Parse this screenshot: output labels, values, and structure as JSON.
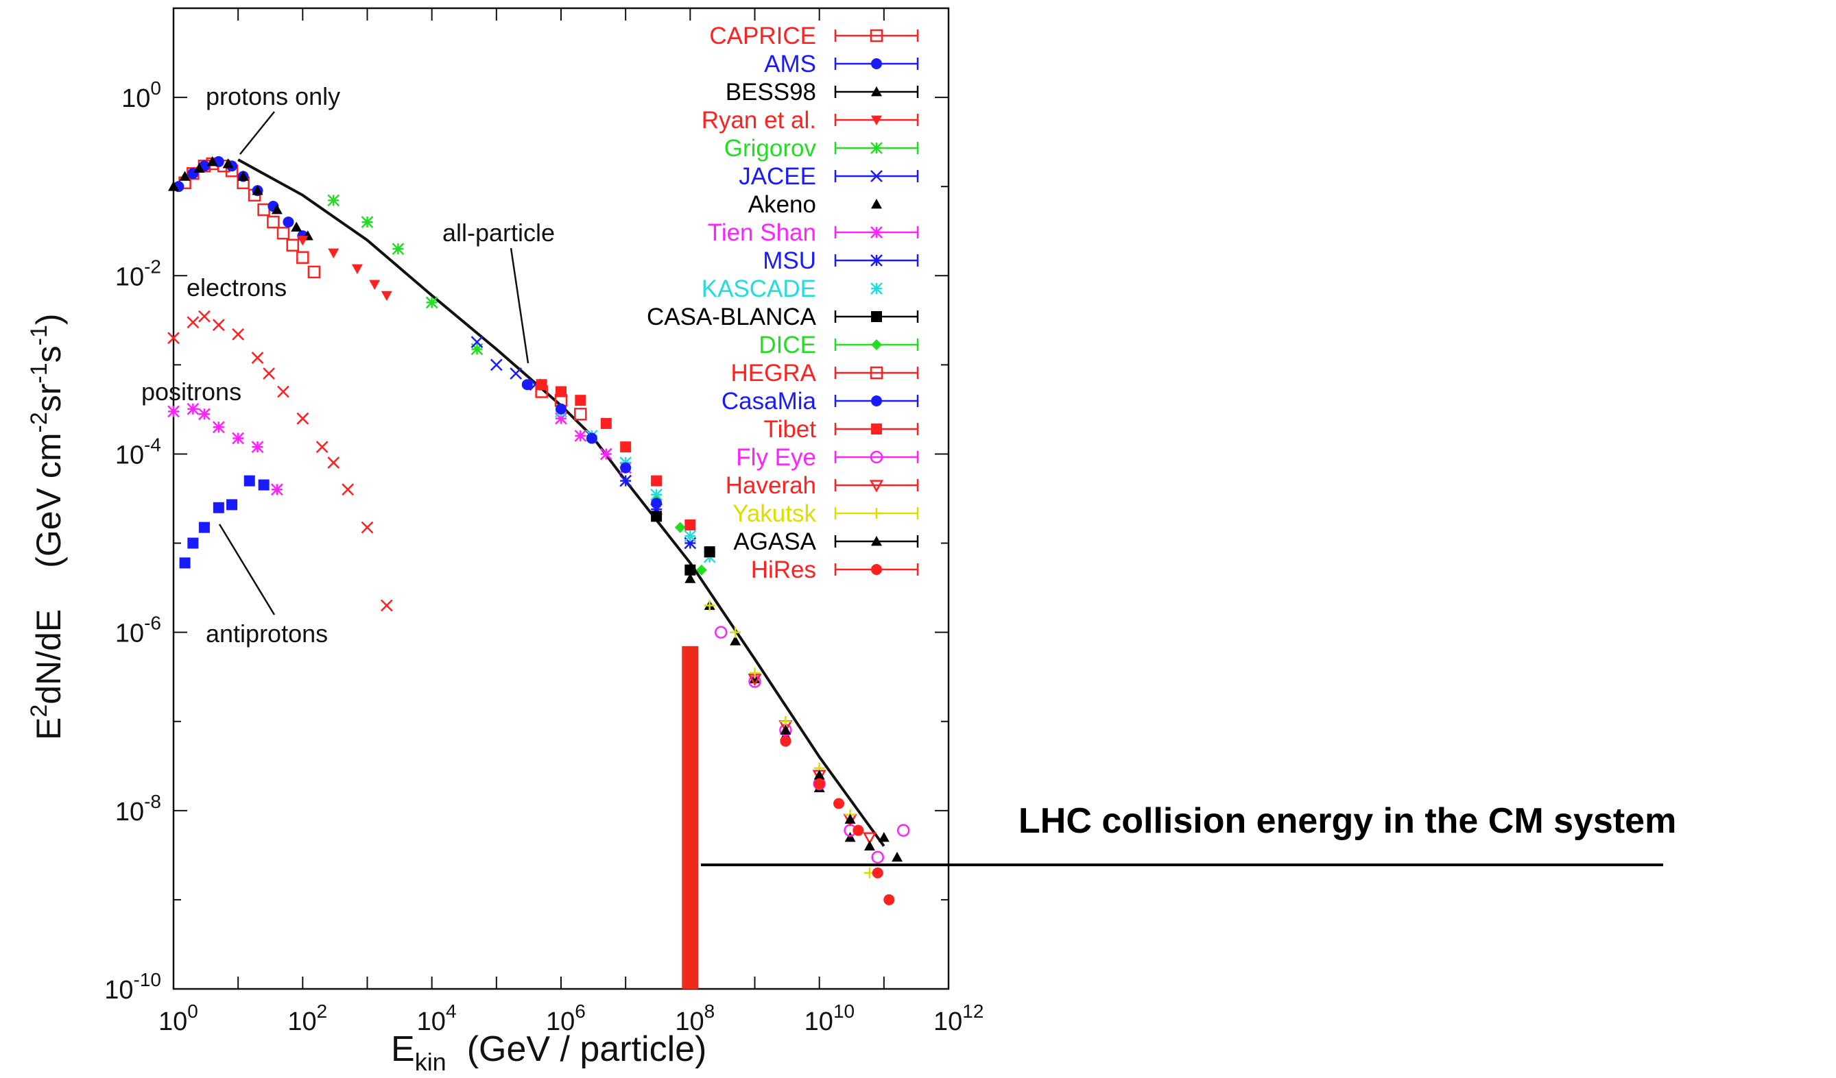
{
  "chart_data": {
    "type": "scatter",
    "xlabel": "E",
    "xlabel_sub": "kin",
    "xlabel_unit": "(GeV / particle)",
    "ylabel": "E",
    "ylabel_sup": "2",
    "ylabel_rest": "dN/dE",
    "ylabel_unit": "(GeV cm",
    "ylabel_unit_exp1": "-2",
    "ylabel_unit_mid1": "sr",
    "ylabel_unit_exp2": "-1",
    "ylabel_unit_mid2": "s",
    "ylabel_unit_exp3": "-1",
    "ylabel_unit_end": ")",
    "xscale": "log",
    "yscale": "log",
    "xlim": [
      1,
      1000000000000.0
    ],
    "ylim": [
      1e-10,
      10
    ],
    "x_ticks": [
      {
        "base": "10",
        "exp": "0"
      },
      {
        "base": "10",
        "exp": "2"
      },
      {
        "base": "10",
        "exp": "4"
      },
      {
        "base": "10",
        "exp": "6"
      },
      {
        "base": "10",
        "exp": "8"
      },
      {
        "base": "10",
        "exp": "10"
      },
      {
        "base": "10",
        "exp": "12"
      }
    ],
    "y_ticks": [
      {
        "base": "10",
        "exp": "0"
      },
      {
        "base": "10",
        "exp": "-2"
      },
      {
        "base": "10",
        "exp": "-4"
      },
      {
        "base": "10",
        "exp": "-6"
      },
      {
        "base": "10",
        "exp": "-8"
      },
      {
        "base": "10",
        "exp": "-10"
      }
    ],
    "legend_position": "top-right",
    "series": [
      {
        "name": "CAPRICE",
        "color": "#ff2020",
        "marker": "square-open",
        "points": [
          [
            1.5,
            0.11
          ],
          [
            2,
            0.14
          ],
          [
            3,
            0.17
          ],
          [
            4,
            0.18
          ],
          [
            6,
            0.17
          ],
          [
            8,
            0.15
          ],
          [
            12,
            0.11
          ],
          [
            18,
            0.08
          ],
          [
            25,
            0.055
          ],
          [
            35,
            0.04
          ],
          [
            50,
            0.03
          ],
          [
            70,
            0.022
          ],
          [
            100,
            0.016
          ],
          [
            150,
            0.011
          ]
        ]
      },
      {
        "name": "AMS",
        "color": "#1a1aff",
        "marker": "circle",
        "points": [
          [
            1.2,
            0.1
          ],
          [
            2,
            0.14
          ],
          [
            3,
            0.17
          ],
          [
            5,
            0.19
          ],
          [
            8,
            0.17
          ],
          [
            12,
            0.13
          ],
          [
            20,
            0.09
          ],
          [
            35,
            0.06
          ],
          [
            60,
            0.04
          ],
          [
            100,
            0.028
          ]
        ]
      },
      {
        "name": "BESS98",
        "color": "#000000",
        "marker": "triangle",
        "points": [
          [
            1,
            0.1
          ],
          [
            1.5,
            0.13
          ],
          [
            2.5,
            0.16
          ],
          [
            4,
            0.19
          ],
          [
            7,
            0.18
          ],
          [
            12,
            0.13
          ],
          [
            20,
            0.09
          ],
          [
            40,
            0.055
          ],
          [
            80,
            0.035
          ],
          [
            120,
            0.028
          ]
        ]
      },
      {
        "name": "Ryan et al.",
        "color": "#ff2020",
        "marker": "triangle-down",
        "points": [
          [
            100,
            0.025
          ],
          [
            300,
            0.018
          ],
          [
            700,
            0.012
          ],
          [
            1300,
            0.008
          ],
          [
            2000,
            0.006
          ]
        ]
      },
      {
        "name": "Grigorov",
        "color": "#22dd22",
        "marker": "star",
        "points": [
          [
            300,
            0.07
          ],
          [
            1000,
            0.04
          ],
          [
            3000,
            0.02
          ],
          [
            10000,
            0.005
          ],
          [
            50000,
            0.0015
          ]
        ]
      },
      {
        "name": "JACEE",
        "color": "#1a1aff",
        "marker": "cross",
        "points": [
          [
            50000,
            0.0018
          ],
          [
            100000,
            0.001
          ],
          [
            200000,
            0.0008
          ],
          [
            400000,
            0.0006
          ]
        ]
      },
      {
        "name": "Akeno",
        "color": "#000000",
        "marker": "triangle",
        "points": [
          [
            100000000.0,
            4e-06
          ],
          [
            200000000.0,
            2e-06
          ],
          [
            500000000.0,
            8e-07
          ],
          [
            1000000000.0,
            3e-07
          ],
          [
            3000000000.0,
            7e-08
          ],
          [
            10000000000.0,
            1.8e-08
          ],
          [
            30000000000.0,
            5e-09
          ]
        ]
      },
      {
        "name": "Tien Shan",
        "color": "#ff22ff",
        "marker": "star",
        "points": [
          [
            1000000.0,
            0.00025
          ],
          [
            2000000.0,
            0.00016
          ],
          [
            5000000.0,
            0.0001
          ],
          [
            10000000.0,
            7e-05
          ]
        ]
      },
      {
        "name": "MSU",
        "color": "#1a1aff",
        "marker": "star",
        "points": [
          [
            10000000.0,
            5e-05
          ],
          [
            30000000.0,
            2.4e-05
          ],
          [
            100000000.0,
            1e-05
          ]
        ]
      },
      {
        "name": "KASCADE",
        "color": "#22dddd",
        "marker": "star",
        "points": [
          [
            1000000.0,
            0.0003
          ],
          [
            3000000.0,
            0.00016
          ],
          [
            10000000.0,
            8e-05
          ],
          [
            30000000.0,
            3.5e-05
          ],
          [
            100000000.0,
            1.2e-05
          ],
          [
            200000000.0,
            7e-06
          ]
        ]
      },
      {
        "name": "CASA-BLANCA",
        "color": "#000000",
        "marker": "square",
        "points": [
          [
            30000000.0,
            2e-05
          ],
          [
            100000000.0,
            5e-06
          ],
          [
            200000000.0,
            8e-06
          ]
        ]
      },
      {
        "name": "DICE",
        "color": "#22dd22",
        "marker": "diamond",
        "points": [
          [
            30000000.0,
            3e-05
          ],
          [
            70000000.0,
            1.5e-05
          ],
          [
            150000000.0,
            5e-06
          ]
        ]
      },
      {
        "name": "HEGRA",
        "color": "#ff2020",
        "marker": "square-open",
        "points": [
          [
            500000.0,
            0.0005
          ],
          [
            1000000.0,
            0.0004
          ],
          [
            2000000.0,
            0.00028
          ]
        ]
      },
      {
        "name": "CasaMia",
        "color": "#1a1aff",
        "marker": "circle",
        "points": [
          [
            300000.0,
            0.0006
          ],
          [
            1000000.0,
            0.00032
          ],
          [
            3000000.0,
            0.00015
          ],
          [
            10000000.0,
            7e-05
          ],
          [
            30000000.0,
            2.8e-05
          ]
        ]
      },
      {
        "name": "Tibet",
        "color": "#ff2020",
        "marker": "square",
        "points": [
          [
            500000.0,
            0.0006
          ],
          [
            1000000.0,
            0.0005
          ],
          [
            2000000.0,
            0.0004
          ],
          [
            5000000.0,
            0.00022
          ],
          [
            10000000.0,
            0.00012
          ],
          [
            30000000.0,
            5e-05
          ],
          [
            100000000.0,
            1.6e-05
          ]
        ]
      },
      {
        "name": "Fly Eye",
        "color": "#ff22ff",
        "marker": "circle-open",
        "points": [
          [
            300000000.0,
            1e-06
          ],
          [
            1000000000.0,
            2.8e-07
          ],
          [
            3000000000.0,
            8e-08
          ],
          [
            10000000000.0,
            2e-08
          ],
          [
            30000000000.0,
            6e-09
          ],
          [
            80000000000.0,
            3e-09
          ],
          [
            200000000000.0,
            6e-09
          ]
        ]
      },
      {
        "name": "Haverah",
        "color": "#ff2020",
        "marker": "triangle-down-open",
        "points": [
          [
            1000000000.0,
            3e-07
          ],
          [
            3000000000.0,
            9e-08
          ],
          [
            10000000000.0,
            2.5e-08
          ],
          [
            30000000000.0,
            8e-09
          ],
          [
            60000000000.0,
            5e-09
          ]
        ]
      },
      {
        "name": "Yakutsk",
        "color": "#dddd00",
        "marker": "plus",
        "points": [
          [
            200000000.0,
            2e-06
          ],
          [
            500000000.0,
            1e-06
          ],
          [
            1000000000.0,
            3.5e-07
          ],
          [
            3000000000.0,
            1e-07
          ],
          [
            10000000000.0,
            3e-08
          ],
          [
            30000000000.0,
            9e-09
          ],
          [
            60000000000.0,
            2e-09
          ]
        ]
      },
      {
        "name": "AGASA",
        "color": "#000000",
        "marker": "triangle",
        "points": [
          [
            3000000000.0,
            8e-08
          ],
          [
            10000000000.0,
            2.5e-08
          ],
          [
            30000000000.0,
            8e-09
          ],
          [
            60000000000.0,
            4e-09
          ],
          [
            100000000000.0,
            5e-09
          ],
          [
            160000000000.0,
            3e-09
          ]
        ]
      },
      {
        "name": "HiRes",
        "color": "#ff2020",
        "marker": "circle",
        "points": [
          [
            3000000000.0,
            6e-08
          ],
          [
            10000000000.0,
            2e-08
          ],
          [
            20000000000.0,
            1.2e-08
          ],
          [
            40000000000.0,
            6e-09
          ],
          [
            80000000000.0,
            2e-09
          ],
          [
            120000000000.0,
            1e-09
          ]
        ]
      },
      {
        "name": "",
        "color": "#ff2020",
        "marker": "x",
        "role": "electrons",
        "points": [
          [
            1,
            0.002
          ],
          [
            2,
            0.003
          ],
          [
            3,
            0.0035
          ],
          [
            5,
            0.0028
          ],
          [
            10,
            0.0022
          ],
          [
            20,
            0.0012
          ],
          [
            30,
            0.0008
          ],
          [
            50,
            0.0005
          ],
          [
            100,
            0.00025
          ],
          [
            200,
            0.00012
          ],
          [
            300,
            8e-05
          ],
          [
            500,
            4e-05
          ],
          [
            1000,
            1.5e-05
          ],
          [
            2000,
            2e-06
          ]
        ]
      },
      {
        "name": "",
        "color": "#ff22ff",
        "marker": "star",
        "role": "positrons",
        "points": [
          [
            1,
            0.0003
          ],
          [
            2,
            0.00032
          ],
          [
            3,
            0.00028
          ],
          [
            5,
            0.0002
          ],
          [
            10,
            0.00015
          ],
          [
            20,
            0.00012
          ],
          [
            40,
            4e-05
          ]
        ]
      },
      {
        "name": "",
        "color": "#1a1aff",
        "marker": "square",
        "role": "antiprotons",
        "points": [
          [
            1.5,
            6e-06
          ],
          [
            2,
            1e-05
          ],
          [
            3,
            1.5e-05
          ],
          [
            5,
            2.5e-05
          ],
          [
            8,
            2.7e-05
          ],
          [
            15,
            5e-05
          ],
          [
            25,
            4.5e-05
          ]
        ]
      }
    ],
    "all_particle_curve": [
      [
        10,
        0.2
      ],
      [
        100,
        0.08
      ],
      [
        1000,
        0.025
      ],
      [
        10000,
        0.006
      ],
      [
        100000,
        0.0015
      ],
      [
        1000000,
        0.00035
      ],
      [
        3000000,
        0.00016
      ],
      [
        10000000.0,
        5e-05
      ],
      [
        100000000.0,
        6e-06
      ],
      [
        1000000000.0,
        5e-07
      ],
      [
        10000000000.0,
        4e-08
      ],
      [
        100000000000.0,
        4e-09
      ]
    ],
    "annotations": [
      {
        "text": "protons only",
        "x": 10,
        "y": 0.2
      },
      {
        "text": "all-particle",
        "x": 400000,
        "y": 0.0007
      },
      {
        "text": "electrons",
        "x": 2,
        "y": 0.003
      },
      {
        "text": "positrons",
        "x": 2,
        "y": 0.0003
      },
      {
        "text": "antiprotons",
        "x": 6,
        "y": 2.5e-05
      }
    ],
    "marker_line": {
      "x": 100000000.0,
      "y_bottom": 1e-10,
      "y_top": 7e-07,
      "color": "#ee2a1a"
    }
  },
  "external_label": "LHC collision energy in the CM system"
}
